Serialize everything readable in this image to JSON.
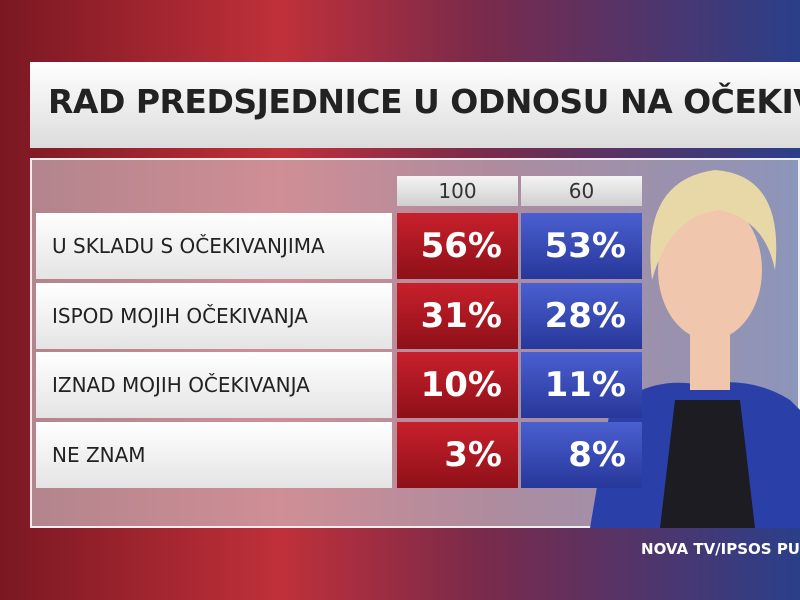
{
  "header": {
    "title": "RAD PREDSJEDNICE U ODNOSU NA OČEKIVAN"
  },
  "table": {
    "columns": [
      "100",
      "60"
    ],
    "rows": [
      [
        "U SKLADU S OČEKIVANJIMA",
        "56%",
        "53%"
      ],
      [
        "ISPOD MOJIH OČEKIVANJA",
        "31%",
        "28%"
      ],
      [
        "IZNAD MOJIH OČEKIVANJA",
        "10%",
        "11%"
      ],
      [
        "NE ZNAM",
        "3%",
        "8%"
      ]
    ]
  },
  "footer": {
    "source": "NOVA TV/IPSOS PU"
  }
}
